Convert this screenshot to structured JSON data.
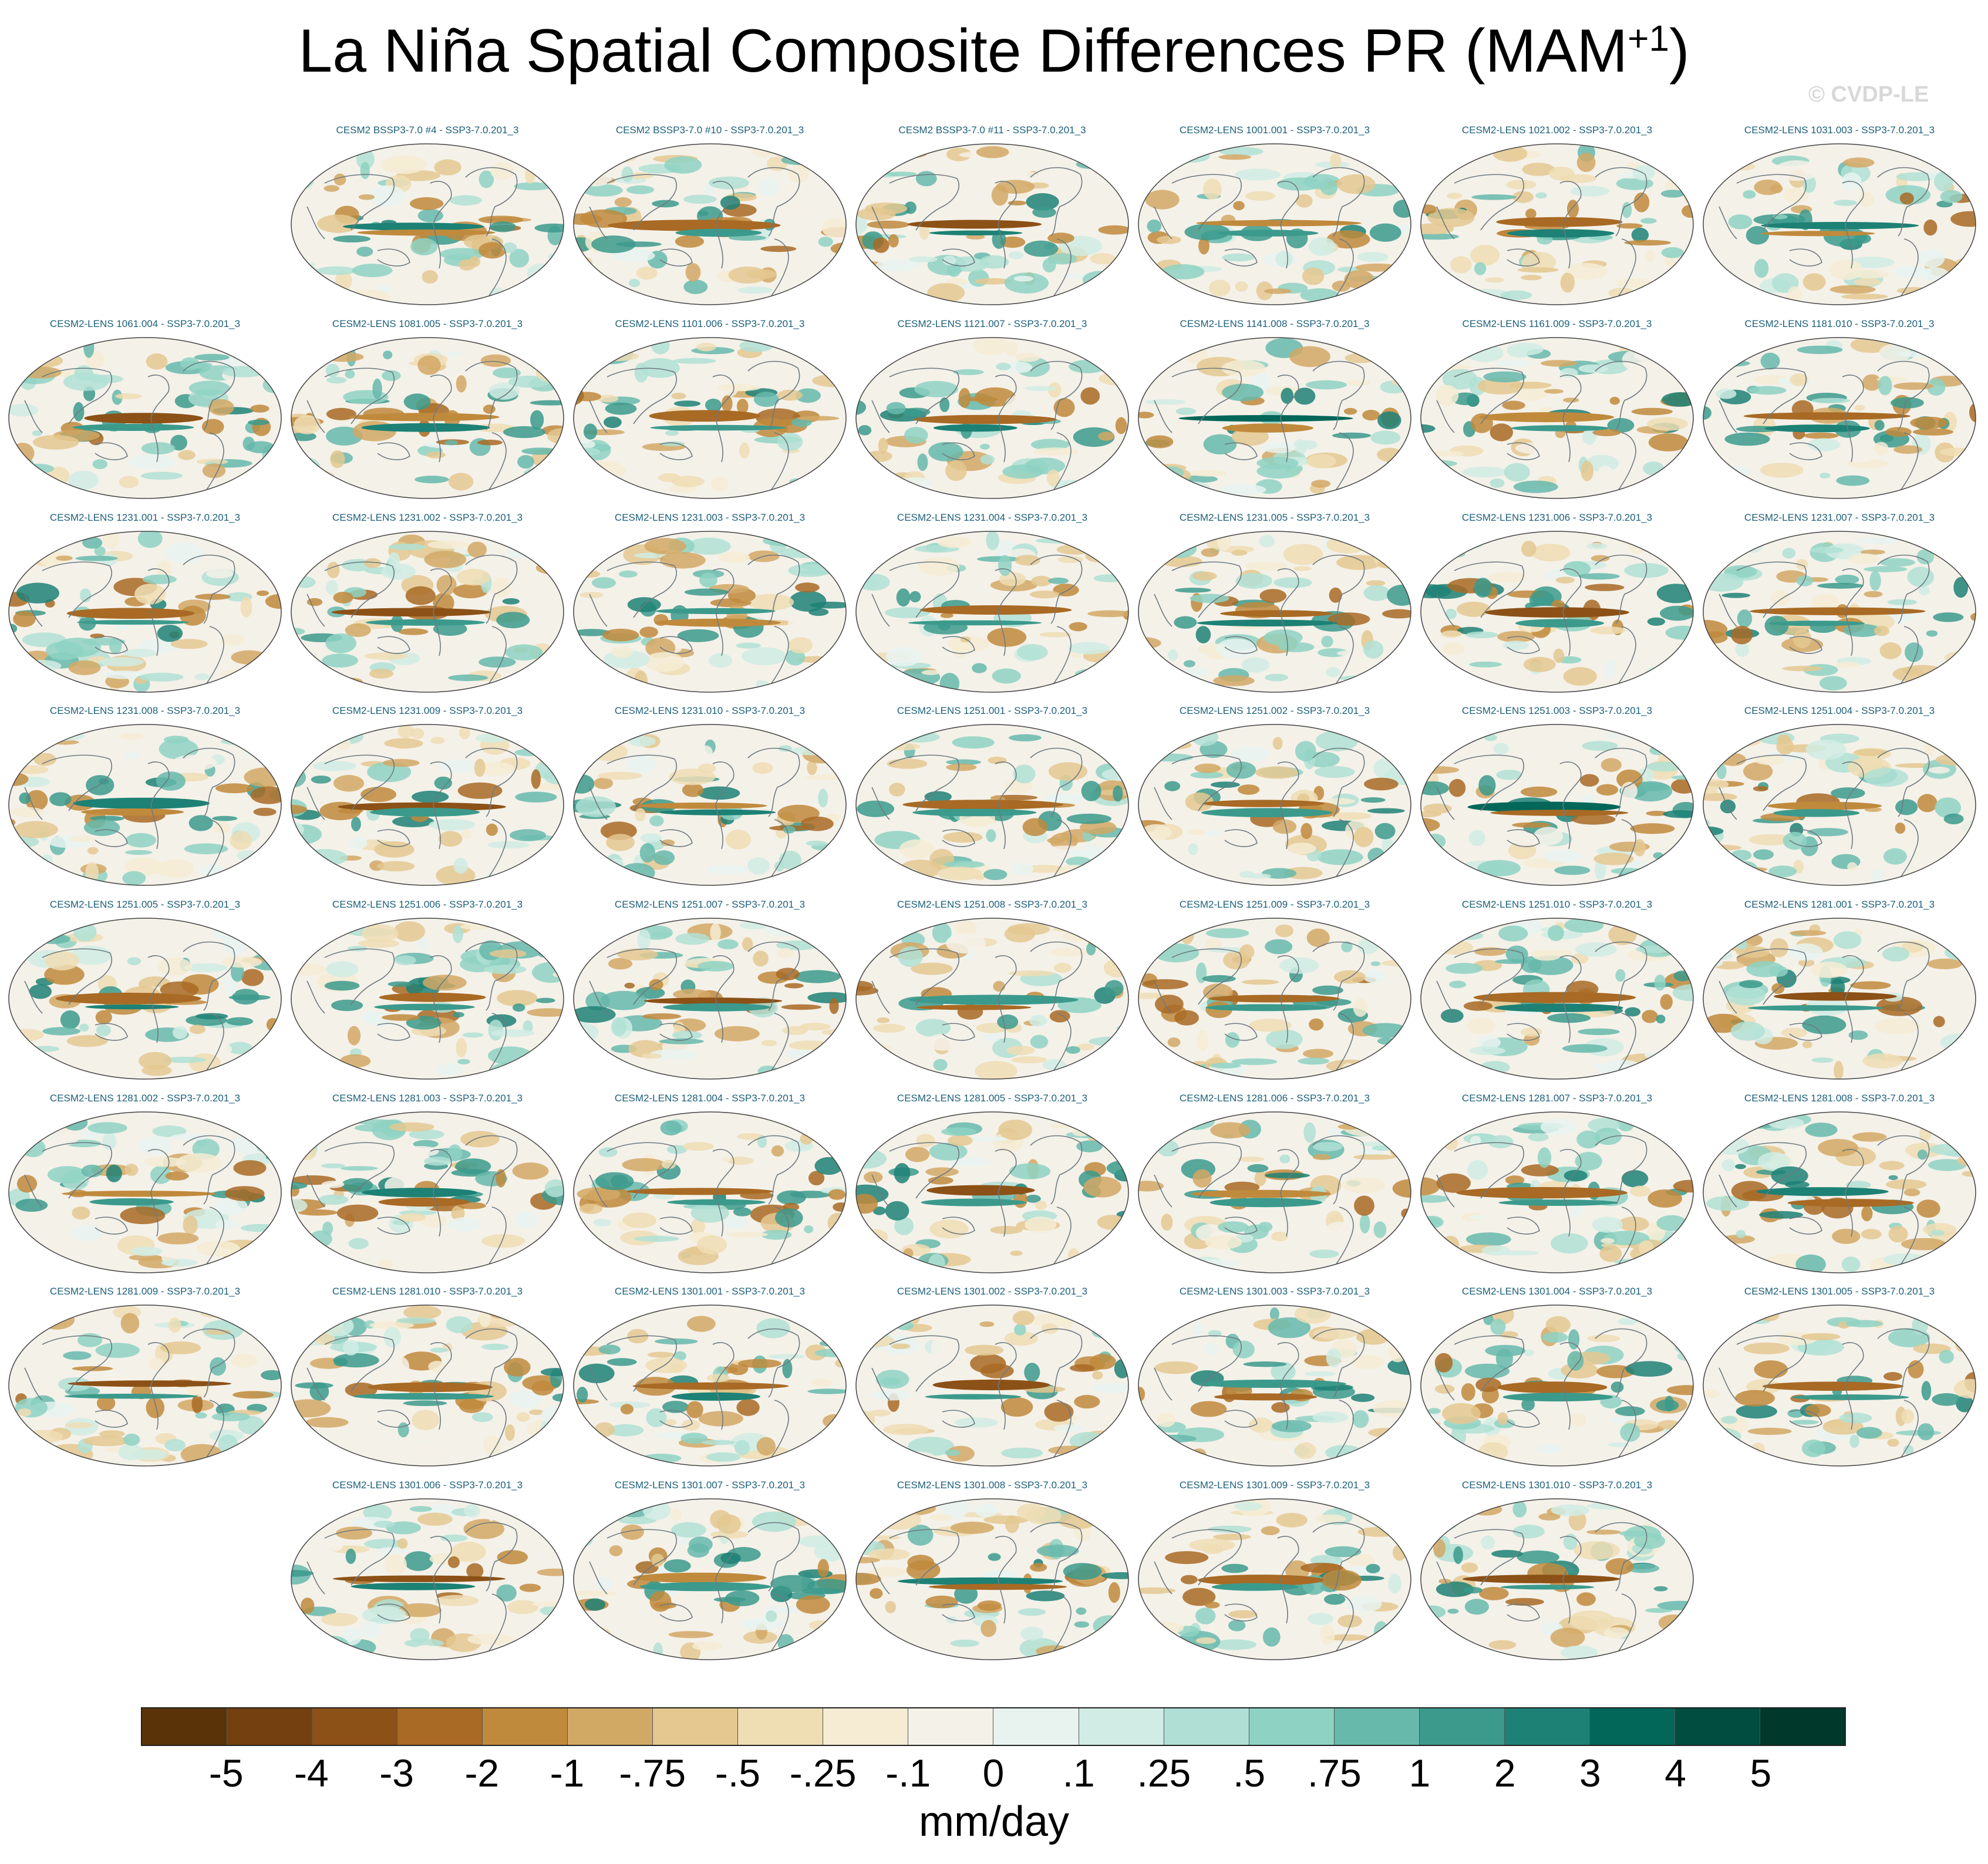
{
  "title": {
    "text": "La Niña Spatial Composite Differences PR (MAM",
    "superscript": "+1",
    "close": ")"
  },
  "watermark": "© CVDP-LE",
  "chart_data": {
    "type": "heatmap",
    "title": "La Niña Spatial Composite Differences PR (MAM+1)",
    "variable": "PR",
    "season": "MAM+1",
    "projection": "global map panels",
    "panels": [
      {
        "row": 0,
        "col": 1,
        "label": "CESM2 BSSP3-7.0 #4 - SSP3-7.0.201_3"
      },
      {
        "row": 0,
        "col": 2,
        "label": "CESM2 BSSP3-7.0 #10 - SSP3-7.0.201_3"
      },
      {
        "row": 0,
        "col": 3,
        "label": "CESM2 BSSP3-7.0 #11 - SSP3-7.0.201_3"
      },
      {
        "row": 0,
        "col": 4,
        "label": "CESM2-LENS 1001.001 - SSP3-7.0.201_3"
      },
      {
        "row": 0,
        "col": 5,
        "label": "CESM2-LENS 1021.002 - SSP3-7.0.201_3"
      },
      {
        "row": 0,
        "col": 6,
        "label": "CESM2-LENS 1031.003 - SSP3-7.0.201_3"
      },
      {
        "row": 1,
        "col": 0,
        "label": "CESM2-LENS 1061.004 - SSP3-7.0.201_3"
      },
      {
        "row": 1,
        "col": 1,
        "label": "CESM2-LENS 1081.005 - SSP3-7.0.201_3"
      },
      {
        "row": 1,
        "col": 2,
        "label": "CESM2-LENS 1101.006 - SSP3-7.0.201_3"
      },
      {
        "row": 1,
        "col": 3,
        "label": "CESM2-LENS 1121.007 - SSP3-7.0.201_3"
      },
      {
        "row": 1,
        "col": 4,
        "label": "CESM2-LENS 1141.008 - SSP3-7.0.201_3"
      },
      {
        "row": 1,
        "col": 5,
        "label": "CESM2-LENS 1161.009 - SSP3-7.0.201_3"
      },
      {
        "row": 1,
        "col": 6,
        "label": "CESM2-LENS 1181.010 - SSP3-7.0.201_3"
      },
      {
        "row": 2,
        "col": 0,
        "label": "CESM2-LENS 1231.001 - SSP3-7.0.201_3"
      },
      {
        "row": 2,
        "col": 1,
        "label": "CESM2-LENS 1231.002 - SSP3-7.0.201_3"
      },
      {
        "row": 2,
        "col": 2,
        "label": "CESM2-LENS 1231.003 - SSP3-7.0.201_3"
      },
      {
        "row": 2,
        "col": 3,
        "label": "CESM2-LENS 1231.004 - SSP3-7.0.201_3"
      },
      {
        "row": 2,
        "col": 4,
        "label": "CESM2-LENS 1231.005 - SSP3-7.0.201_3"
      },
      {
        "row": 2,
        "col": 5,
        "label": "CESM2-LENS 1231.006 - SSP3-7.0.201_3"
      },
      {
        "row": 2,
        "col": 6,
        "label": "CESM2-LENS 1231.007 - SSP3-7.0.201_3"
      },
      {
        "row": 3,
        "col": 0,
        "label": "CESM2-LENS 1231.008 - SSP3-7.0.201_3"
      },
      {
        "row": 3,
        "col": 1,
        "label": "CESM2-LENS 1231.009 - SSP3-7.0.201_3"
      },
      {
        "row": 3,
        "col": 2,
        "label": "CESM2-LENS 1231.010 - SSP3-7.0.201_3"
      },
      {
        "row": 3,
        "col": 3,
        "label": "CESM2-LENS 1251.001 - SSP3-7.0.201_3"
      },
      {
        "row": 3,
        "col": 4,
        "label": "CESM2-LENS 1251.002 - SSP3-7.0.201_3"
      },
      {
        "row": 3,
        "col": 5,
        "label": "CESM2-LENS 1251.003 - SSP3-7.0.201_3"
      },
      {
        "row": 3,
        "col": 6,
        "label": "CESM2-LENS 1251.004 - SSP3-7.0.201_3"
      },
      {
        "row": 4,
        "col": 0,
        "label": "CESM2-LENS 1251.005 - SSP3-7.0.201_3"
      },
      {
        "row": 4,
        "col": 1,
        "label": "CESM2-LENS 1251.006 - SSP3-7.0.201_3"
      },
      {
        "row": 4,
        "col": 2,
        "label": "CESM2-LENS 1251.007 - SSP3-7.0.201_3"
      },
      {
        "row": 4,
        "col": 3,
        "label": "CESM2-LENS 1251.008 - SSP3-7.0.201_3"
      },
      {
        "row": 4,
        "col": 4,
        "label": "CESM2-LENS 1251.009 - SSP3-7.0.201_3"
      },
      {
        "row": 4,
        "col": 5,
        "label": "CESM2-LENS 1251.010 - SSP3-7.0.201_3"
      },
      {
        "row": 4,
        "col": 6,
        "label": "CESM2-LENS 1281.001 - SSP3-7.0.201_3"
      },
      {
        "row": 5,
        "col": 0,
        "label": "CESM2-LENS 1281.002 - SSP3-7.0.201_3"
      },
      {
        "row": 5,
        "col": 1,
        "label": "CESM2-LENS 1281.003 - SSP3-7.0.201_3"
      },
      {
        "row": 5,
        "col": 2,
        "label": "CESM2-LENS 1281.004 - SSP3-7.0.201_3"
      },
      {
        "row": 5,
        "col": 3,
        "label": "CESM2-LENS 1281.005 - SSP3-7.0.201_3"
      },
      {
        "row": 5,
        "col": 4,
        "label": "CESM2-LENS 1281.006 - SSP3-7.0.201_3"
      },
      {
        "row": 5,
        "col": 5,
        "label": "CESM2-LENS 1281.007 - SSP3-7.0.201_3"
      },
      {
        "row": 5,
        "col": 6,
        "label": "CESM2-LENS 1281.008 - SSP3-7.0.201_3"
      },
      {
        "row": 6,
        "col": 0,
        "label": "CESM2-LENS 1281.009 - SSP3-7.0.201_3"
      },
      {
        "row": 6,
        "col": 1,
        "label": "CESM2-LENS 1281.010 - SSP3-7.0.201_3"
      },
      {
        "row": 6,
        "col": 2,
        "label": "CESM2-LENS 1301.001 - SSP3-7.0.201_3"
      },
      {
        "row": 6,
        "col": 3,
        "label": "CESM2-LENS 1301.002 - SSP3-7.0.201_3"
      },
      {
        "row": 6,
        "col": 4,
        "label": "CESM2-LENS 1301.003 - SSP3-7.0.201_3"
      },
      {
        "row": 6,
        "col": 5,
        "label": "CESM2-LENS 1301.004 - SSP3-7.0.201_3"
      },
      {
        "row": 6,
        "col": 6,
        "label": "CESM2-LENS 1301.005 - SSP3-7.0.201_3"
      },
      {
        "row": 7,
        "col": 1,
        "label": "CESM2-LENS 1301.006 - SSP3-7.0.201_3"
      },
      {
        "row": 7,
        "col": 2,
        "label": "CESM2-LENS 1301.007 - SSP3-7.0.201_3"
      },
      {
        "row": 7,
        "col": 3,
        "label": "CESM2-LENS 1301.008 - SSP3-7.0.201_3"
      },
      {
        "row": 7,
        "col": 4,
        "label": "CESM2-LENS 1301.009 - SSP3-7.0.201_3"
      },
      {
        "row": 7,
        "col": 5,
        "label": "CESM2-LENS 1301.010 - SSP3-7.0.201_3"
      }
    ],
    "colorbar": {
      "units": "mm/day",
      "tick_labels": [
        "-5",
        "-4",
        "-3",
        "-2",
        "-1",
        "-.75",
        "-.5",
        "-.25",
        "-.1",
        "0",
        ".1",
        ".25",
        ".5",
        ".75",
        "1",
        "2",
        "3",
        "4",
        "5"
      ],
      "colors": [
        "#5a3408",
        "#744010",
        "#8c5116",
        "#a86a24",
        "#c08a3c",
        "#d2a865",
        "#e4c890",
        "#efddb4",
        "#f5ecd3",
        "#f4f1e9",
        "#e8f3f0",
        "#d0ece4",
        "#b0e0d5",
        "#8ed2c3",
        "#66b9ab",
        "#3b9a8c",
        "#1d8175",
        "#026659",
        "#014d40",
        "#00392c"
      ]
    }
  }
}
